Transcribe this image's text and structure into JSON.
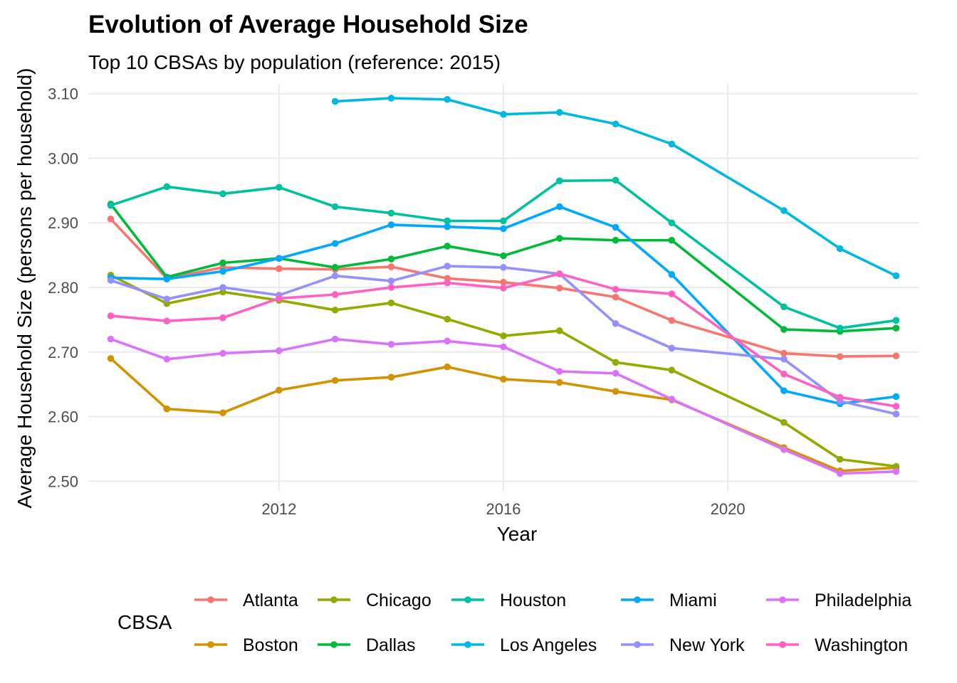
{
  "chart_data": {
    "type": "line",
    "title": "Evolution of Average Household Size",
    "subtitle": "Top 10 CBSAs by population (reference: 2015)",
    "xlabel": "Year",
    "ylabel": "Average Household Size (persons per household)",
    "xlim": [
      2008.6,
      2023.4
    ],
    "ylim": [
      2.485,
      3.115
    ],
    "x_ticks": [
      2012,
      2016,
      2020
    ],
    "x_tick_labels": [
      "2012",
      "2016",
      "2020"
    ],
    "y_ticks": [
      2.5,
      2.6,
      2.7,
      2.8,
      2.9,
      3.0,
      3.1
    ],
    "y_tick_labels": [
      "2.50",
      "2.60",
      "2.70",
      "2.80",
      "2.90",
      "3.00",
      "3.10"
    ],
    "grid": true,
    "legend_title": "CBSA",
    "legend_position": "bottom",
    "series": [
      {
        "name": "Atlanta",
        "color": "#F8766D",
        "x": [
          2009,
          2010,
          2011,
          2012,
          2013,
          2014,
          2015,
          2016,
          2017,
          2018,
          2019,
          2021,
          2022,
          2023
        ],
        "values": [
          2.906,
          2.814,
          2.831,
          2.829,
          2.828,
          2.832,
          2.814,
          2.808,
          2.799,
          2.785,
          2.749,
          2.698,
          2.693,
          2.694
        ]
      },
      {
        "name": "Boston",
        "color": "#D39200",
        "x": [
          2009,
          2010,
          2011,
          2012,
          2013,
          2014,
          2015,
          2016,
          2017,
          2018,
          2019,
          2021,
          2022,
          2023
        ],
        "values": [
          2.69,
          2.612,
          2.606,
          2.641,
          2.656,
          2.661,
          2.677,
          2.658,
          2.653,
          2.639,
          2.626,
          2.552,
          2.516,
          2.521
        ]
      },
      {
        "name": "Chicago",
        "color": "#93AA00",
        "x": [
          2009,
          2010,
          2011,
          2012,
          2013,
          2014,
          2015,
          2016,
          2017,
          2018,
          2019,
          2021,
          2022,
          2023
        ],
        "values": [
          2.819,
          2.775,
          2.793,
          2.78,
          2.765,
          2.776,
          2.751,
          2.725,
          2.733,
          2.684,
          2.672,
          2.591,
          2.534,
          2.523
        ]
      },
      {
        "name": "Dallas",
        "color": "#00BA38",
        "x": [
          2009,
          2010,
          2011,
          2012,
          2013,
          2014,
          2015,
          2016,
          2017,
          2018,
          2019,
          2021,
          2022,
          2023
        ],
        "values": [
          2.929,
          2.816,
          2.838,
          2.845,
          2.831,
          2.844,
          2.864,
          2.849,
          2.876,
          2.873,
          2.873,
          2.735,
          2.732,
          2.737
        ]
      },
      {
        "name": "Houston",
        "color": "#00C19F",
        "x": [
          2009,
          2010,
          2011,
          2012,
          2013,
          2014,
          2015,
          2016,
          2017,
          2018,
          2019,
          2021,
          2022,
          2023
        ],
        "values": [
          2.927,
          2.956,
          2.945,
          2.955,
          2.925,
          2.915,
          2.903,
          2.903,
          2.965,
          2.966,
          2.9,
          2.77,
          2.737,
          2.749
        ]
      },
      {
        "name": "Los Angeles",
        "color": "#00B9E3",
        "x": [
          2013,
          2014,
          2015,
          2016,
          2017,
          2018,
          2019,
          2021,
          2022,
          2023
        ],
        "values": [
          3.088,
          3.093,
          3.091,
          3.068,
          3.071,
          3.053,
          3.022,
          2.919,
          2.86,
          2.818
        ]
      },
      {
        "name": "Miami",
        "color": "#00A9FF",
        "x": [
          2009,
          2010,
          2011,
          2012,
          2013,
          2014,
          2015,
          2016,
          2017,
          2018,
          2019,
          2021,
          2022,
          2023
        ],
        "values": [
          2.815,
          2.813,
          2.825,
          2.845,
          2.868,
          2.897,
          2.894,
          2.891,
          2.925,
          2.893,
          2.82,
          2.64,
          2.62,
          2.631
        ]
      },
      {
        "name": "New York",
        "color": "#9590FF",
        "x": [
          2009,
          2010,
          2011,
          2012,
          2013,
          2014,
          2015,
          2016,
          2017,
          2018,
          2019,
          2021,
          2022,
          2023
        ],
        "values": [
          2.811,
          2.782,
          2.8,
          2.788,
          2.818,
          2.81,
          2.833,
          2.831,
          2.821,
          2.744,
          2.706,
          2.689,
          2.624,
          2.604
        ]
      },
      {
        "name": "Philadelphia",
        "color": "#DB72FB",
        "x": [
          2009,
          2010,
          2011,
          2012,
          2013,
          2014,
          2015,
          2016,
          2017,
          2018,
          2019,
          2021,
          2022,
          2023
        ],
        "values": [
          2.72,
          2.689,
          2.698,
          2.702,
          2.72,
          2.712,
          2.717,
          2.708,
          2.67,
          2.667,
          2.627,
          2.549,
          2.512,
          2.515
        ]
      },
      {
        "name": "Washington",
        "color": "#FF61C3",
        "x": [
          2009,
          2010,
          2011,
          2012,
          2013,
          2014,
          2015,
          2016,
          2017,
          2018,
          2019,
          2021,
          2022,
          2023
        ],
        "values": [
          2.756,
          2.748,
          2.753,
          2.783,
          2.789,
          2.8,
          2.807,
          2.799,
          2.821,
          2.797,
          2.79,
          2.666,
          2.63,
          2.616
        ]
      }
    ]
  }
}
